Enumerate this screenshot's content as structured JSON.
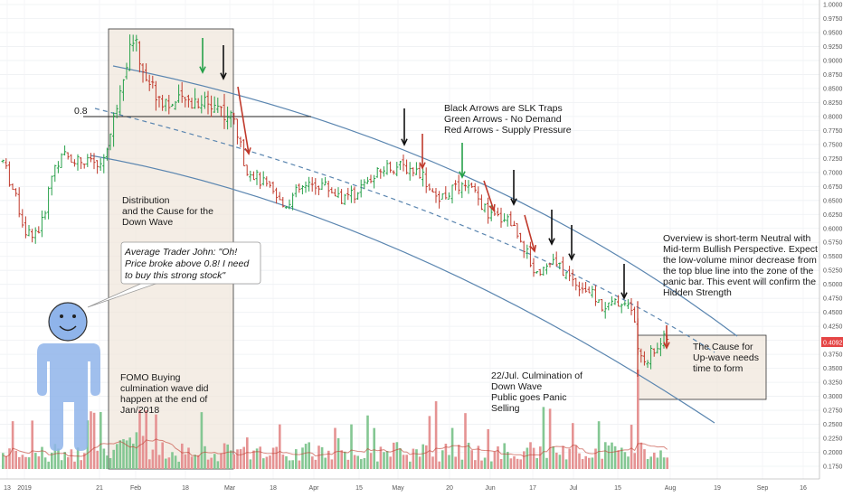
{
  "chart_data": {
    "type": "candlestick",
    "y_axis": {
      "ticks": [
        "1.0000",
        "0.9750",
        "0.9500",
        "0.9250",
        "0.9000",
        "0.8750",
        "0.8500",
        "0.8250",
        "0.8000",
        "0.7750",
        "0.7500",
        "0.7250",
        "0.7000",
        "0.6750",
        "0.6500",
        "0.6250",
        "0.6000",
        "0.5750",
        "0.5500",
        "0.5250",
        "0.5000",
        "0.4750",
        "0.4500",
        "0.4250",
        "0.4000",
        "0.3750",
        "0.3500",
        "0.3250",
        "0.3000",
        "0.2750",
        "0.2500",
        "0.2250",
        "0.2000",
        "0.1750"
      ],
      "ylim": [
        0.165,
        1.0
      ],
      "current_price_label": "0.4092",
      "current_price": 0.4092
    },
    "x_axis": {
      "ticks": [
        "13",
        "2019",
        "21",
        "Feb",
        "18",
        "Mar",
        "18",
        "Apr",
        "15",
        "May",
        "20",
        "Jun",
        "17",
        "Jul",
        "15",
        "Aug",
        "19",
        "Sep",
        "16"
      ]
    },
    "level_line": {
      "label": "0.8",
      "value": 0.8
    },
    "annotations": {
      "distribution": [
        "Distribution",
        "and the Cause for the",
        "Down Wave"
      ],
      "fomo": [
        "FOMO Buying",
        "culmination wave did",
        "happen at the end of",
        "Jan/2018"
      ],
      "bubble": [
        "Average Trader John: \"Oh!",
        "Price broke above 0.8! I need",
        "to buy this strong stock\""
      ],
      "legend": [
        "Black Arrows are SLK Traps",
        "Green Arrows - No Demand",
        "Red Arrows - Supply Pressure"
      ],
      "culmination": [
        "22/Jul. Culmination of",
        "Down Wave",
        "Public goes Panic",
        "Selling"
      ],
      "overview": [
        "Overview is short-term Neutral with",
        "Mid-term Bullish Perspective. Expect",
        "the low-volume minor decrease from",
        "the top blue line into the zone of the",
        "panic bar. This event will confirm the",
        "Hidden Strength"
      ],
      "cause_up": [
        "The Cause for",
        "Up-wave needs",
        "time to form"
      ]
    },
    "colors": {
      "up": "#26a049",
      "down": "#c0392b",
      "channel": "#5b86b0",
      "box_fill": "#efe6da",
      "volume_up": "#84c793",
      "volume_down": "#e59393",
      "price_tag": "#e54545",
      "person": "#8fb4ea"
    }
  }
}
